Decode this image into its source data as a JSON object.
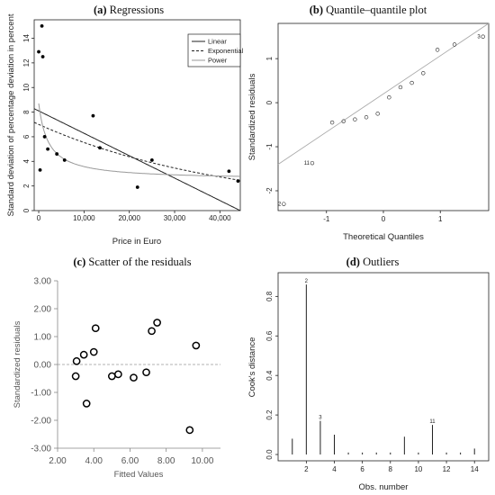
{
  "chart_data": [
    {
      "type": "scatter",
      "label": "(a)",
      "title": "Regressions",
      "xlabel": "Price in Euro",
      "ylabel": "Standard deviation of percentage deviation in percent",
      "xlim": [
        -1000,
        44500
      ],
      "ylim": [
        0,
        15.5
      ],
      "xticks": [
        0,
        10000,
        20000,
        30000,
        40000
      ],
      "xtick_labels": [
        "0",
        "10,000",
        "20,000",
        "30,000",
        "40,000"
      ],
      "yticks": [
        0,
        2,
        4,
        6,
        8,
        10,
        12,
        14
      ],
      "points": [
        {
          "x": 300,
          "y": 3.3
        },
        {
          "x": 0,
          "y": 12.9
        },
        {
          "x": 700,
          "y": 15.0
        },
        {
          "x": 900,
          "y": 12.5
        },
        {
          "x": 1300,
          "y": 6.0
        },
        {
          "x": 2000,
          "y": 5.0
        },
        {
          "x": 4000,
          "y": 4.6
        },
        {
          "x": 5700,
          "y": 4.1
        },
        {
          "x": 12000,
          "y": 7.7
        },
        {
          "x": 13500,
          "y": 5.1
        },
        {
          "x": 21800,
          "y": 1.9
        },
        {
          "x": 25000,
          "y": 4.1
        },
        {
          "x": 42000,
          "y": 3.2
        },
        {
          "x": 44000,
          "y": 2.4
        }
      ],
      "legend": {
        "position": "top-right",
        "entries": [
          "Linear",
          "Exponential",
          "Power"
        ]
      },
      "fits": [
        {
          "name": "Linear",
          "kind": "linear",
          "a": 8.1,
          "b": -0.000182,
          "color": "#222222",
          "dash": ""
        },
        {
          "name": "Exponential",
          "kind": "exponential",
          "a": 7.0,
          "b": -2.35e-05,
          "color": "#222222",
          "dash": "3,2"
        },
        {
          "name": "Power",
          "kind": "hyperbola",
          "a": 2.5,
          "b": 6.2,
          "k": 2100,
          "color": "#999999",
          "dash": ""
        }
      ]
    },
    {
      "type": "scatter",
      "label": "(b)",
      "title": "Quantile–quantile plot",
      "xlabel": "Theoretical Quantiles",
      "ylabel": "Standardized residuals",
      "xlim": [
        -1.85,
        1.85
      ],
      "ylim": [
        -2.45,
        1.8
      ],
      "xticks": [
        -1,
        0,
        1
      ],
      "yticks": [
        -2,
        -1,
        0,
        1
      ],
      "reference_line": {
        "x": [
          -1.85,
          1.85
        ],
        "y": [
          -1.4,
          1.8
        ]
      },
      "points": [
        {
          "x": -1.75,
          "y": -2.3,
          "label": "2"
        },
        {
          "x": -1.25,
          "y": -1.37,
          "label": "11"
        },
        {
          "x": -0.9,
          "y": -0.45
        },
        {
          "x": -0.7,
          "y": -0.42
        },
        {
          "x": -0.5,
          "y": -0.38
        },
        {
          "x": -0.3,
          "y": -0.33
        },
        {
          "x": -0.1,
          "y": -0.25
        },
        {
          "x": 0.1,
          "y": 0.12
        },
        {
          "x": 0.3,
          "y": 0.35
        },
        {
          "x": 0.5,
          "y": 0.45
        },
        {
          "x": 0.7,
          "y": 0.67
        },
        {
          "x": 0.95,
          "y": 1.2
        },
        {
          "x": 1.25,
          "y": 1.32
        },
        {
          "x": 1.75,
          "y": 1.5,
          "label": "3"
        }
      ]
    },
    {
      "type": "scatter",
      "label": "(c)",
      "title": "Scatter of the residuals",
      "xlabel": "Fitted Values",
      "ylabel": "Standardized residuals",
      "xlim": [
        2.0,
        11.0
      ],
      "ylim": [
        -3.0,
        3.0
      ],
      "xticks": [
        2,
        4,
        6,
        8,
        10
      ],
      "xtick_labels": [
        "2.00",
        "4.00",
        "6.00",
        "8.00",
        "10.00"
      ],
      "yticks": [
        -3,
        -2,
        -1,
        0,
        1,
        2,
        3
      ],
      "ytick_labels": [
        "-3.00",
        "-2.00",
        "-1.00",
        "0.00",
        "1.00",
        "2.00",
        "3.00"
      ],
      "zero_line": 0,
      "points": [
        {
          "x": 3.0,
          "y": -0.42
        },
        {
          "x": 3.05,
          "y": 0.12
        },
        {
          "x": 3.45,
          "y": 0.35
        },
        {
          "x": 3.6,
          "y": -1.4
        },
        {
          "x": 4.0,
          "y": 0.45
        },
        {
          "x": 4.1,
          "y": 1.3
        },
        {
          "x": 5.0,
          "y": -0.42
        },
        {
          "x": 5.35,
          "y": -0.35
        },
        {
          "x": 6.2,
          "y": -0.47
        },
        {
          "x": 6.9,
          "y": -0.28
        },
        {
          "x": 7.2,
          "y": 1.2
        },
        {
          "x": 7.5,
          "y": 1.5
        },
        {
          "x": 9.3,
          "y": -2.35
        },
        {
          "x": 9.65,
          "y": 0.68
        }
      ]
    },
    {
      "type": "bar",
      "label": "(d)",
      "title": "Outliers",
      "xlabel": "Obs. number",
      "ylabel": "Cook's distance",
      "xlim": [
        0.5,
        14.5
      ],
      "ylim": [
        0,
        0.92
      ],
      "xticks": [
        2,
        4,
        6,
        8,
        10,
        12,
        14
      ],
      "yticks": [
        0,
        0.2,
        0.4,
        0.6,
        0.8
      ],
      "ytick_labels": [
        "0.0",
        "0.2",
        "0.4",
        "0.6",
        "0.8"
      ],
      "categories": [
        1,
        2,
        3,
        4,
        5,
        6,
        7,
        8,
        9,
        10,
        11,
        12,
        13,
        14
      ],
      "values": [
        0.08,
        0.86,
        0.17,
        0.1,
        0.01,
        0.01,
        0.01,
        0.01,
        0.09,
        0.01,
        0.15,
        0.01,
        0.01,
        0.03
      ],
      "annotations": [
        {
          "x": 2,
          "text": "2"
        },
        {
          "x": 3,
          "text": "3"
        },
        {
          "x": 11,
          "text": "11"
        }
      ]
    }
  ]
}
